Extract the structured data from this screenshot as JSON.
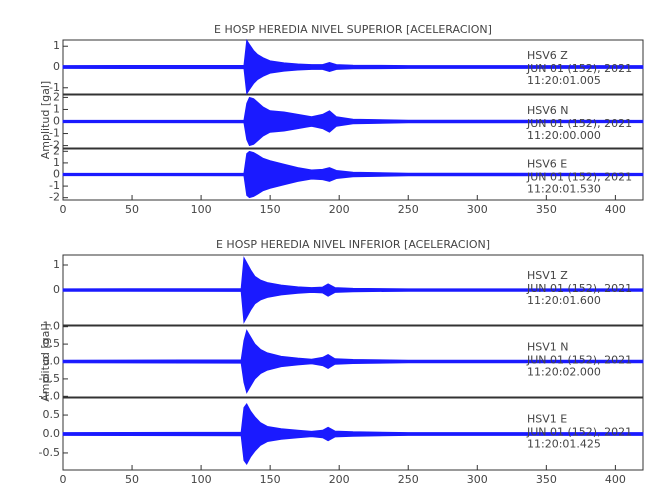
{
  "chart_data": [
    {
      "type": "seismogram",
      "title": "E HOSP HEREDIA NIVEL SUPERIOR [ACELERACION]",
      "ylabel": "Amplitud [gal]",
      "xlim": [
        0,
        420
      ],
      "xticks": [
        0,
        50,
        100,
        150,
        200,
        250,
        300,
        350,
        400
      ],
      "color": "#1a1aff",
      "panels": [
        {
          "label": "HSV6 Z",
          "date": "JUN 01 (152), 2021",
          "time": "11:20:01.005",
          "ylim": [
            -1.3,
            1.3
          ],
          "yticks": [
            -1,
            0,
            1
          ],
          "x": [
            0,
            131,
            133,
            135,
            138,
            141,
            145,
            150,
            160,
            170,
            180,
            188,
            193,
            198,
            210,
            250,
            420
          ],
          "values": [
            0.07,
            0.08,
            1.3,
            1.1,
            0.8,
            0.6,
            0.45,
            0.3,
            0.2,
            0.15,
            0.12,
            0.12,
            0.22,
            0.12,
            0.09,
            0.07,
            0.07
          ]
        },
        {
          "label": "HSV6 N",
          "date": "JUN 01 (152), 2021",
          "time": "11:20:00.000",
          "ylim": [
            -2.2,
            2.2
          ],
          "yticks": [
            -2,
            -1,
            0,
            1,
            2
          ],
          "x": [
            0,
            131,
            133,
            135,
            138,
            141,
            145,
            150,
            160,
            170,
            180,
            188,
            193,
            198,
            210,
            250,
            420
          ],
          "values": [
            0.1,
            0.12,
            1.5,
            2.0,
            1.9,
            1.6,
            1.2,
            0.9,
            0.8,
            0.6,
            0.4,
            0.6,
            0.9,
            0.4,
            0.2,
            0.12,
            0.1
          ]
        },
        {
          "label": "HSV6 E",
          "date": "JUN 01 (152), 2021",
          "time": "11:20:01.530",
          "ylim": [
            -2.2,
            2.2
          ],
          "yticks": [
            -2,
            -1,
            0,
            1,
            2
          ],
          "x": [
            0,
            131,
            133,
            135,
            138,
            141,
            145,
            150,
            160,
            170,
            180,
            188,
            193,
            198,
            210,
            250,
            420
          ],
          "values": [
            0.1,
            0.12,
            1.8,
            2.0,
            1.9,
            1.7,
            1.4,
            1.2,
            0.9,
            0.6,
            0.4,
            0.45,
            0.6,
            0.35,
            0.2,
            0.12,
            0.1
          ]
        }
      ]
    },
    {
      "type": "seismogram",
      "title": "E HOSP HEREDIA NIVEL INFERIOR [ACELERACION]",
      "ylabel": "Amplitud [gal]",
      "xlim": [
        0,
        420
      ],
      "xticks": [
        0,
        50,
        100,
        150,
        200,
        250,
        300,
        350,
        400
      ],
      "color": "#1a1aff",
      "panels": [
        {
          "label": "HSV1 Z",
          "date": "JUN 01 (152), 2021",
          "time": "11:20:01.600",
          "ylim": [
            -1.4,
            1.4
          ],
          "yticks": [
            0,
            1
          ],
          "x": [
            0,
            129,
            131,
            133,
            136,
            139,
            143,
            148,
            158,
            170,
            180,
            188,
            192,
            197,
            210,
            250,
            420
          ],
          "values": [
            0.05,
            0.06,
            1.3,
            1.1,
            0.8,
            0.55,
            0.4,
            0.3,
            0.2,
            0.13,
            0.1,
            0.12,
            0.25,
            0.1,
            0.07,
            0.05,
            0.05
          ]
        },
        {
          "label": "HSV1 N",
          "date": "JUN 01 (152), 2021",
          "time": "11:20:02.000",
          "ylim": [
            -1.02,
            1.02
          ],
          "yticks": [
            {
              "value": -1,
              "label": "-1.0"
            },
            -0.5,
            {
              "value": 0,
              "label": "0.0"
            },
            0.5,
            {
              "value": 1,
              "label": "1.0"
            }
          ],
          "x": [
            0,
            129,
            131,
            133,
            136,
            139,
            143,
            148,
            158,
            170,
            180,
            188,
            192,
            197,
            210,
            250,
            420
          ],
          "values": [
            0.04,
            0.05,
            0.6,
            0.9,
            0.7,
            0.5,
            0.35,
            0.25,
            0.15,
            0.1,
            0.07,
            0.12,
            0.2,
            0.08,
            0.06,
            0.04,
            0.04
          ]
        },
        {
          "label": "HSV1 E",
          "date": "JUN 01 (152), 2021",
          "time": "11:20:01.425",
          "ylim": [
            -0.95,
            0.95
          ],
          "yticks": [
            -0.5,
            {
              "value": 0,
              "label": "0.0"
            },
            0.5
          ],
          "x": [
            0,
            129,
            131,
            133,
            136,
            139,
            143,
            148,
            158,
            170,
            180,
            188,
            192,
            197,
            210,
            250,
            420
          ],
          "values": [
            0.04,
            0.05,
            0.7,
            0.8,
            0.6,
            0.45,
            0.3,
            0.2,
            0.14,
            0.1,
            0.07,
            0.1,
            0.18,
            0.08,
            0.06,
            0.04,
            0.04
          ]
        }
      ]
    }
  ]
}
